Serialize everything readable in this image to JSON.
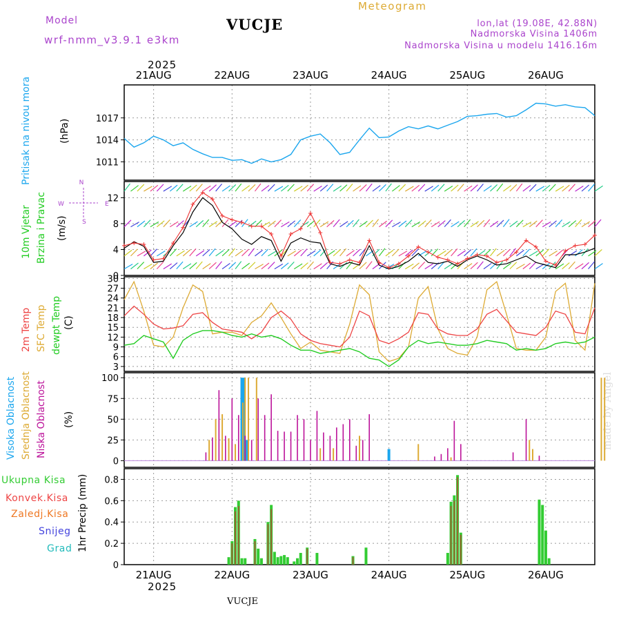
{
  "header": {
    "model_label": "Model",
    "model_name": "wrf-nmm_v3.9.1 e3km",
    "station": "VUCJE",
    "title": "Meteogram",
    "lonlat": "lon,lat (19.08E, 42.88N)",
    "elevation": "Nadmorska Visina 1406m",
    "model_elevation": "Nadmorska Visina u modelu 1416.16m",
    "footer_station": "VUCJE",
    "watermark": "made by Angel",
    "year": "2025"
  },
  "colors": {
    "pressure": "#1ba6ee",
    "wind_speed": "#000000",
    "gust": "#ee3333",
    "t2m": "#ee4444",
    "tsfc": "#ddaa33",
    "dewpt": "#22cc22",
    "cloud_high": "#1ba6ee",
    "cloud_mid": "#ddaa33",
    "cloud_low": "#bb1199",
    "rain_total": "#33cc33",
    "rain_conv": "#ee4444",
    "rain_frz": "#ee7722",
    "snow": "#4444dd",
    "hail": "#22bbbb",
    "purple": "#aa44cc",
    "title_gold": "#ddaa33"
  },
  "days": [
    "21AUG",
    "22AUG",
    "23AUG",
    "24AUG",
    "25AUG",
    "26AUG"
  ],
  "compass": {
    "n": "N",
    "e": "E",
    "s": "S",
    "w": "W"
  },
  "chart_data": [
    {
      "type": "line",
      "name": "pressure",
      "title": "Pritisak na nivou mora",
      "ylabel": "(hPa)",
      "yticks": [
        1011,
        1014,
        1017
      ],
      "ylim": [
        1008.5,
        1021.5
      ],
      "x_hours": [
        0,
        3,
        6,
        9,
        12,
        15,
        18,
        21,
        24,
        27,
        30,
        33,
        36,
        39,
        42,
        45,
        48,
        51,
        54,
        57,
        60,
        63,
        66,
        69,
        72,
        75,
        78,
        81,
        84,
        87,
        90,
        93,
        96,
        99,
        102,
        105,
        108,
        111,
        114,
        117,
        120,
        123,
        126,
        129,
        132,
        135,
        138,
        141,
        144
      ],
      "series": [
        {
          "name": "Pritisak",
          "values": [
            1014.2,
            1013.0,
            1013.6,
            1014.5,
            1014.0,
            1013.2,
            1013.6,
            1012.7,
            1012.1,
            1011.6,
            1011.6,
            1011.2,
            1011.3,
            1010.8,
            1011.4,
            1011.0,
            1011.3,
            1012.0,
            1014.0,
            1014.5,
            1014.8,
            1013.6,
            1012.0,
            1012.3,
            1014.0,
            1015.6,
            1014.3,
            1014.4,
            1015.2,
            1015.8,
            1015.5,
            1015.9,
            1015.5,
            1016.0,
            1016.5,
            1017.2,
            1017.3,
            1017.5,
            1017.6,
            1017.1,
            1017.3,
            1018.1,
            1019.0,
            1018.9,
            1018.6,
            1018.8,
            1018.5,
            1018.4,
            1017.3
          ]
        }
      ]
    },
    {
      "type": "line",
      "name": "wind",
      "title": "10m Vjetar",
      "subtitle": "Brzina i Pravac",
      "ylabel": "(m/s)",
      "yticks": [
        0,
        4,
        8,
        12
      ],
      "ylim": [
        0,
        14.5
      ],
      "x_hours": [
        0,
        3,
        6,
        9,
        12,
        15,
        18,
        21,
        24,
        27,
        30,
        33,
        36,
        39,
        42,
        45,
        48,
        51,
        54,
        57,
        60,
        63,
        66,
        69,
        72,
        75,
        78,
        81,
        84,
        87,
        90,
        93,
        96,
        99,
        102,
        105,
        108,
        111,
        114,
        117,
        120,
        123,
        126,
        129,
        132,
        135,
        138,
        141,
        144
      ],
      "series": [
        {
          "name": "Brzina",
          "values": [
            4.2,
            5.2,
            4.5,
            2.0,
            2.2,
            4.6,
            6.6,
            9.8,
            12.0,
            10.8,
            8.2,
            7.2,
            5.6,
            4.8,
            6.0,
            5.4,
            2.2,
            5.0,
            5.8,
            5.2,
            5.0,
            1.8,
            1.4,
            2.0,
            1.6,
            4.6,
            1.6,
            1.0,
            1.4,
            2.2,
            3.4,
            2.0,
            1.8,
            2.2,
            1.4,
            2.4,
            3.0,
            2.4,
            1.6,
            1.8,
            2.4,
            3.0,
            2.0,
            1.6,
            1.2,
            3.2,
            3.2,
            3.6,
            4.2
          ]
        },
        {
          "name": "Udari",
          "values": [
            4.6,
            5.0,
            4.8,
            2.4,
            2.6,
            5.0,
            7.4,
            11.0,
            12.8,
            11.8,
            9.2,
            8.6,
            8.2,
            7.6,
            7.6,
            6.4,
            3.0,
            6.4,
            7.2,
            9.6,
            6.6,
            2.0,
            1.8,
            2.4,
            2.0,
            5.4,
            2.0,
            1.2,
            1.8,
            3.0,
            4.4,
            3.6,
            2.8,
            2.4,
            1.8,
            2.6,
            3.2,
            3.0,
            2.0,
            2.4,
            3.6,
            5.4,
            4.4,
            2.2,
            1.6,
            3.8,
            4.6,
            4.8,
            6.2
          ]
        }
      ],
      "barb_rows": [
        1,
        3,
        7.5,
        13
      ]
    },
    {
      "type": "line",
      "name": "temperature",
      "title": [
        "2m Temp",
        "SFC Temp",
        "dewpt Temp"
      ],
      "ylabel": "(C)",
      "yticks": [
        3,
        6,
        9,
        12,
        15,
        18,
        21,
        24,
        27,
        30
      ],
      "ylim": [
        1.5,
        30.5
      ],
      "x_hours": [
        0,
        3,
        6,
        9,
        12,
        15,
        18,
        21,
        24,
        27,
        30,
        33,
        36,
        39,
        42,
        45,
        48,
        51,
        54,
        57,
        60,
        63,
        66,
        69,
        72,
        75,
        78,
        81,
        84,
        87,
        90,
        93,
        96,
        99,
        102,
        105,
        108,
        111,
        114,
        117,
        120,
        123,
        126,
        129,
        132,
        135,
        138,
        141,
        144
      ],
      "series": [
        {
          "name": "2m Temp",
          "values": [
            18.5,
            21.5,
            19.0,
            16.0,
            14.5,
            14.8,
            15.5,
            19.0,
            19.5,
            16.5,
            14.5,
            14.0,
            13.5,
            11.5,
            13.5,
            18.0,
            20.0,
            17.5,
            13.0,
            11.0,
            10.0,
            9.5,
            9.0,
            12.0,
            20.0,
            18.5,
            11.0,
            10.0,
            11.5,
            13.5,
            19.5,
            19.0,
            14.5,
            13.0,
            12.5,
            12.5,
            14.5,
            19.0,
            20.5,
            17.0,
            13.5,
            13.0,
            12.5,
            15.0,
            20.0,
            19.0,
            13.5,
            13.0,
            21.0
          ]
        },
        {
          "name": "SFC Temp",
          "values": [
            23.5,
            29.0,
            20.0,
            9.5,
            9.0,
            12.0,
            21.0,
            28.0,
            26.0,
            13.0,
            13.5,
            13.5,
            12.5,
            16.5,
            18.5,
            22.5,
            18.0,
            13.0,
            8.5,
            10.5,
            8.0,
            7.5,
            7.0,
            16.0,
            28.0,
            25.0,
            7.5,
            4.5,
            5.5,
            9.0,
            24.0,
            27.5,
            14.5,
            8.5,
            7.0,
            6.5,
            12.0,
            26.5,
            29.0,
            19.0,
            8.5,
            8.0,
            8.0,
            12.0,
            26.0,
            28.5,
            11.0,
            8.0,
            28.5
          ]
        },
        {
          "name": "dewpt Temp",
          "values": [
            9.5,
            10.0,
            12.5,
            11.5,
            10.5,
            5.5,
            11.0,
            13.0,
            14.0,
            14.0,
            13.5,
            12.5,
            12.0,
            13.0,
            12.0,
            12.5,
            11.5,
            9.5,
            8.0,
            8.0,
            7.0,
            7.5,
            8.0,
            8.5,
            7.5,
            5.5,
            5.0,
            3.0,
            5.0,
            9.0,
            11.0,
            10.0,
            10.5,
            10.0,
            9.5,
            9.5,
            10.0,
            11.0,
            10.5,
            10.0,
            8.0,
            8.5,
            8.0,
            8.5,
            10.0,
            10.5,
            10.0,
            10.5,
            12.0
          ]
        }
      ]
    },
    {
      "type": "bar",
      "name": "clouds",
      "title": [
        "Visoka Oblacnost",
        "Srednja Oblacnost",
        "Niska Oblacnost"
      ],
      "ylabel": "(%)",
      "yticks": [
        0,
        25,
        50,
        75,
        100
      ],
      "ylim": [
        -8,
        106
      ],
      "series": [
        {
          "name": "Visoka",
          "x_hours": [
            36,
            36.6,
            37.5,
            81
          ],
          "values": [
            100,
            100,
            25,
            14
          ]
        },
        {
          "name": "Srednja",
          "x_hours": [
            26,
            28,
            30,
            32,
            34,
            36.3,
            37,
            38,
            40.5,
            60,
            64,
            72,
            90,
            100,
            124,
            125,
            146,
            147
          ],
          "values": [
            25,
            50,
            56,
            27,
            20,
            70,
            100,
            100,
            100,
            15,
            15,
            30,
            20,
            4,
            25,
            14,
            100,
            100
          ]
        },
        {
          "name": "Niska",
          "x_hours": [
            25,
            27,
            29,
            31,
            33,
            35,
            37,
            39,
            41,
            43,
            45,
            47,
            49,
            51,
            53,
            55,
            57,
            59,
            61,
            63,
            65,
            67,
            69,
            71,
            73,
            75,
            95,
            97,
            99,
            101,
            103,
            119,
            123,
            127
          ],
          "values": [
            10,
            28,
            85,
            30,
            75,
            55,
            30,
            25,
            75,
            55,
            80,
            36,
            35,
            35,
            55,
            50,
            25,
            60,
            34,
            30,
            40,
            44,
            50,
            18,
            25,
            56,
            5,
            8,
            15,
            48,
            20,
            10,
            50,
            6
          ]
        }
      ]
    },
    {
      "type": "bar",
      "name": "precip",
      "title": [
        "Ukupna Kisa",
        "Konvek.Kisa",
        "Zaledj.Kisa",
        "Snijeg",
        "Grad"
      ],
      "ylabel": "1hr Precip (mm)",
      "yticks": [
        0,
        0.2,
        0.4,
        0.6,
        0.8
      ],
      "ylim": [
        0,
        0.9
      ],
      "series": [
        {
          "name": "Ukupna",
          "x_hours": [
            32,
            33,
            34,
            35,
            36,
            37,
            40,
            41,
            42,
            44,
            45,
            46,
            47,
            48,
            49,
            50,
            52,
            53,
            54,
            56,
            59,
            70,
            74,
            99,
            100,
            101,
            102,
            103,
            127,
            128,
            129,
            130
          ],
          "values": [
            0.07,
            0.22,
            0.54,
            0.6,
            0.06,
            0.06,
            0.24,
            0.15,
            0.06,
            0.4,
            0.56,
            0.12,
            0.07,
            0.08,
            0.09,
            0.07,
            0.03,
            0.06,
            0.11,
            0.16,
            0.11,
            0.08,
            0.16,
            0.11,
            0.59,
            0.65,
            0.84,
            0.3,
            0.61,
            0.56,
            0.32,
            0.06
          ]
        },
        {
          "name": "Konvek",
          "x_hours": [
            33,
            34,
            35,
            40,
            44,
            45,
            56,
            70,
            100,
            101,
            102,
            103
          ],
          "values": [
            0.2,
            0.5,
            0.55,
            0.22,
            0.38,
            0.52,
            0.15,
            0.07,
            0.55,
            0.6,
            0.82,
            0.28
          ]
        }
      ]
    }
  ]
}
